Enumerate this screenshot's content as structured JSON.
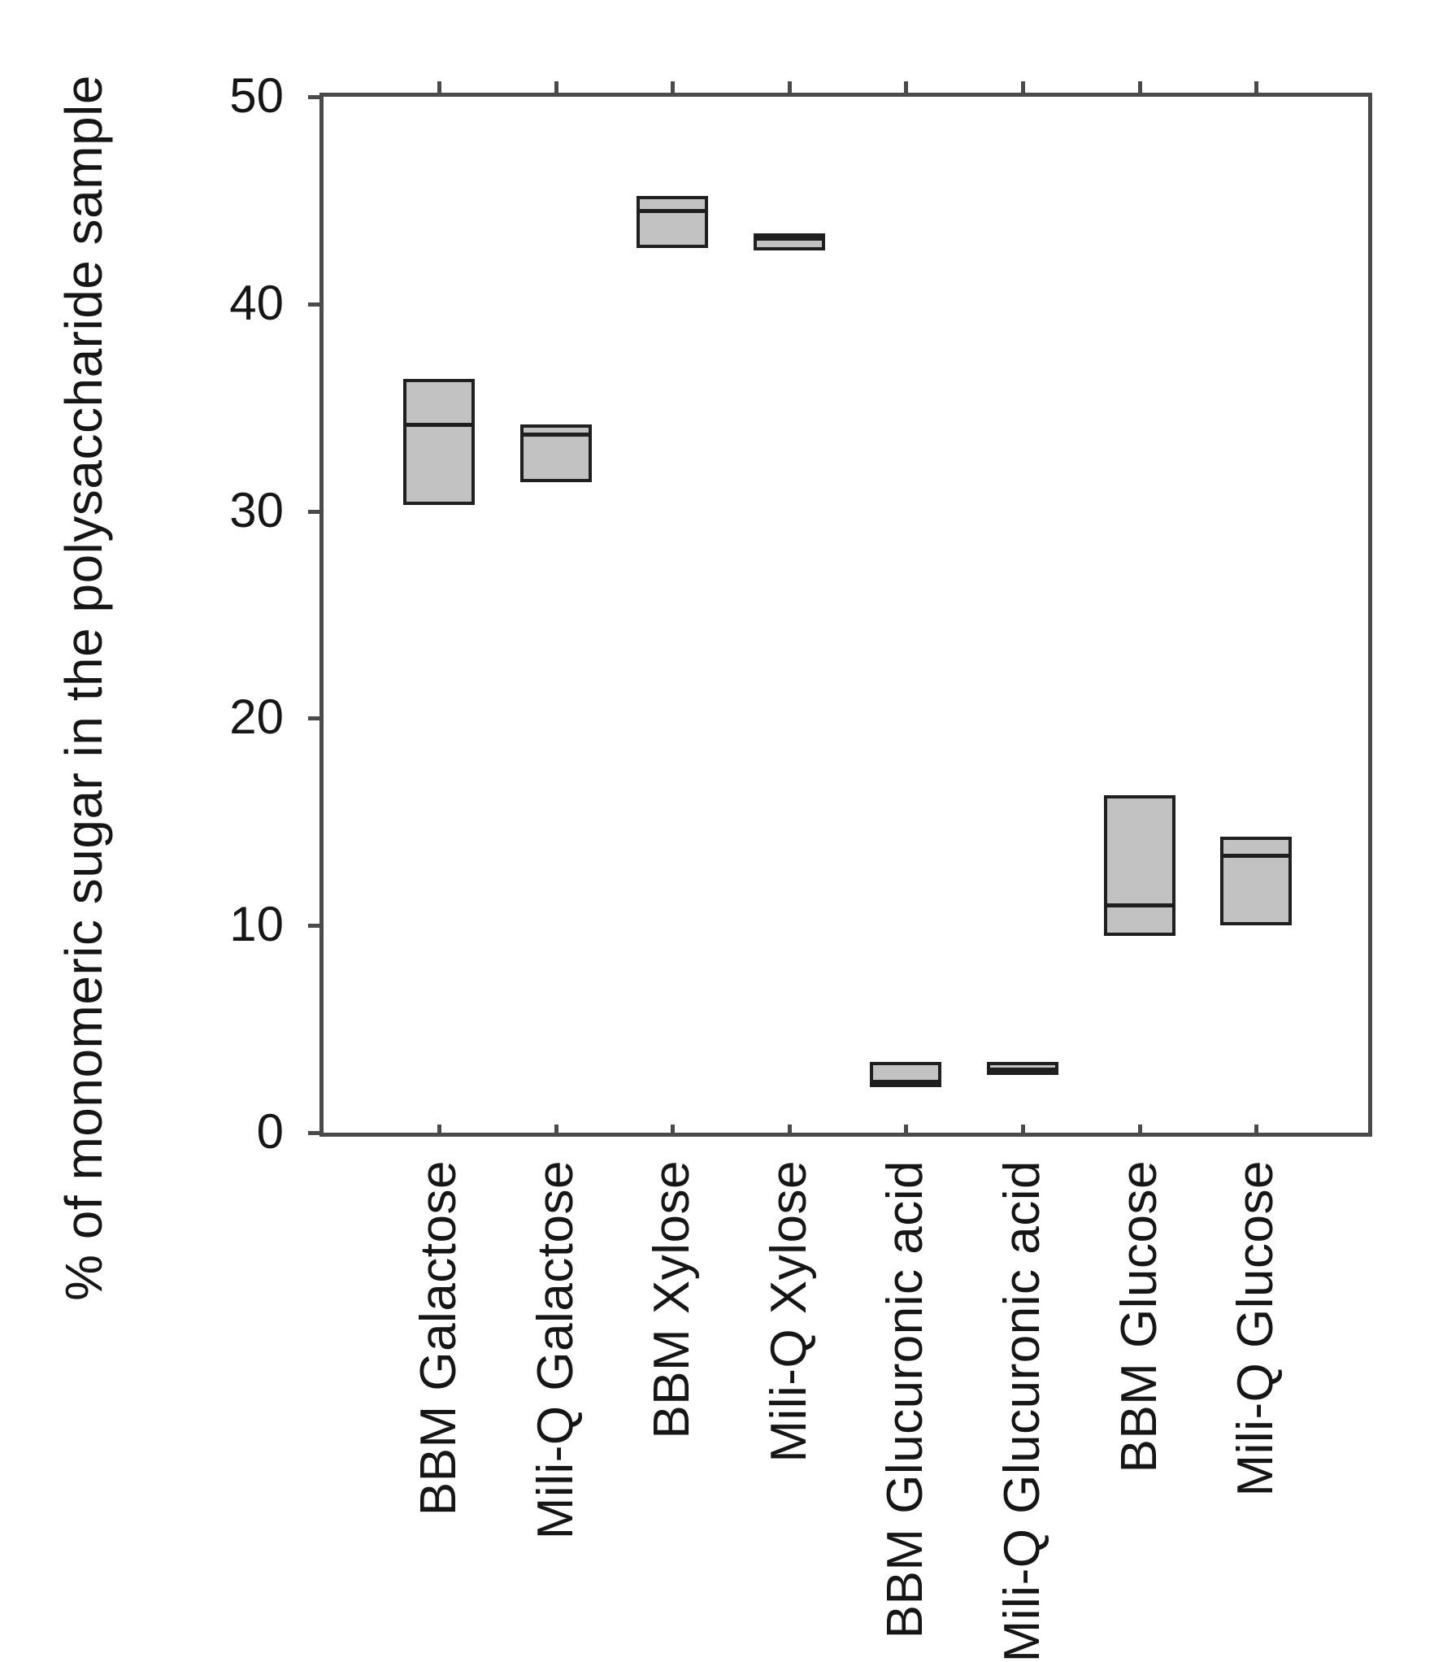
{
  "colors": {
    "background": "#ffffff",
    "frame": "#4a4a4a",
    "text": "#161616",
    "box_fill": "#c2c2c2",
    "box_border": "#1f1f1f"
  },
  "chart_data": {
    "type": "box",
    "title": "",
    "xlabel": "",
    "ylabel": "% of monomeric sugar in the polysaccharide sample",
    "ylim": [
      0,
      50
    ],
    "y_ticks": [
      0,
      10,
      20,
      30,
      40,
      50
    ],
    "grid": false,
    "legend": false,
    "box_orientation": "vertical",
    "categories": [
      "BBM Galactose",
      "Mili-Q Galactose",
      "BBM Xylose",
      "Mili-Q Xylose",
      "BBM Glucuronic acid",
      "Mili-Q Glucuronic acid",
      "BBM Glucose",
      "Mili-Q Glucose"
    ],
    "series": [
      {
        "name": "BBM Galactose",
        "low": 30.3,
        "median": 34.2,
        "high": 36.4
      },
      {
        "name": "Mili-Q Galactose",
        "low": 31.4,
        "median": 33.7,
        "high": 34.2
      },
      {
        "name": "BBM Xylose",
        "low": 42.7,
        "median": 44.5,
        "high": 45.2
      },
      {
        "name": "Mili-Q Xylose",
        "low": 42.6,
        "median": 43.2,
        "high": 43.4
      },
      {
        "name": "BBM Glucuronic acid",
        "low": 2.2,
        "median": 2.4,
        "high": 3.4
      },
      {
        "name": "Mili-Q Glucuronic acid",
        "low": 2.8,
        "median": 2.9,
        "high": 3.4
      },
      {
        "name": "BBM Glucose",
        "low": 9.5,
        "median": 11.0,
        "high": 16.3
      },
      {
        "name": "Mili-Q Glucose",
        "low": 10.0,
        "median": 13.4,
        "high": 14.3
      }
    ]
  }
}
